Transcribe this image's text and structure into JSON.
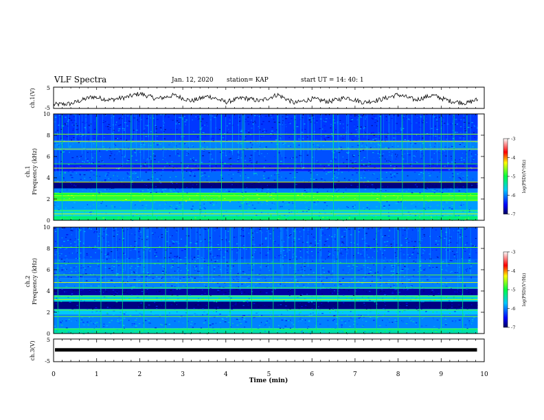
{
  "header": {
    "title": "VLF Spectra",
    "date": "Jan. 12, 2020",
    "station": "station= KAP",
    "start": "start  UT =   14: 40: 1"
  },
  "chart_data": [
    {
      "type": "line",
      "panel": "ch1-waveform",
      "ylabel": "ch.1(V)",
      "ylim": [
        -5,
        5
      ],
      "yticks": [
        "5",
        "-5"
      ],
      "xlim": [
        0,
        10
      ],
      "profile_x": [
        0,
        0.4,
        0.9,
        1.3,
        1.7,
        2.0,
        2.4,
        2.8,
        3.2,
        3.6,
        4.0,
        4.4,
        4.8,
        5.2,
        5.6,
        6.0,
        6.4,
        6.8,
        7.2,
        7.6,
        8.0,
        8.4,
        8.8,
        9.2,
        9.6,
        9.8
      ],
      "profile_y": [
        -3.2,
        -2.8,
        0.5,
        -1.0,
        0.3,
        2.0,
        -0.5,
        1.2,
        -1.5,
        0.8,
        -2.0,
        0.0,
        -1.5,
        1.5,
        -2.5,
        -0.5,
        -1.8,
        0.2,
        -2.2,
        -0.8,
        1.5,
        -1.0,
        1.2,
        -1.5,
        -2.5,
        -1.0
      ]
    },
    {
      "type": "heatmap",
      "panel": "ch1-spectrogram",
      "ylabel": "ch.1\nFrequency (kHz)",
      "ylim": [
        0,
        10
      ],
      "yticks": [
        "0",
        "2",
        "4",
        "6",
        "8",
        "10"
      ],
      "xlim": [
        0,
        10
      ],
      "bands": [
        {
          "f0": 0.0,
          "f1": 0.4,
          "level": -5.2
        },
        {
          "f0": 0.4,
          "f1": 1.0,
          "level": -5.6
        },
        {
          "f0": 1.0,
          "f1": 1.8,
          "level": -5.9
        },
        {
          "f0": 1.8,
          "f1": 2.6,
          "level": -5.0
        },
        {
          "f0": 2.6,
          "f1": 3.0,
          "level": -6.0
        },
        {
          "f0": 3.0,
          "f1": 3.6,
          "level": -6.9
        },
        {
          "f0": 3.6,
          "f1": 4.6,
          "level": -6.1
        },
        {
          "f0": 4.6,
          "f1": 5.4,
          "level": -6.4
        },
        {
          "f0": 5.4,
          "f1": 6.6,
          "level": -6.2
        },
        {
          "f0": 6.6,
          "f1": 7.5,
          "level": -6.0
        },
        {
          "f0": 7.5,
          "f1": 10.0,
          "level": -6.3
        }
      ],
      "lines_khz": [
        0.6,
        0.9,
        1.9,
        2.1,
        2.3,
        2.5,
        3.6,
        4.9,
        5.3,
        6.7,
        7.4,
        8.1
      ],
      "bursts_min": [
        0.2,
        1.0,
        1.8,
        2.3,
        3.0,
        3.4,
        3.9,
        4.4,
        5.2,
        5.6,
        6.0,
        6.5,
        7.1,
        7.6,
        8.1,
        8.6,
        9.0,
        9.3,
        9.6
      ]
    },
    {
      "type": "heatmap",
      "panel": "ch2-spectrogram",
      "ylabel": "ch.2\nFrequency (kHz)",
      "ylim": [
        0,
        10
      ],
      "yticks": [
        "0",
        "2",
        "4",
        "6",
        "8",
        "10"
      ],
      "xlim": [
        0,
        10
      ],
      "bands": [
        {
          "f0": 0.0,
          "f1": 0.5,
          "level": -5.4
        },
        {
          "f0": 0.5,
          "f1": 1.8,
          "level": -6.0
        },
        {
          "f0": 1.8,
          "f1": 2.3,
          "level": -5.7
        },
        {
          "f0": 2.3,
          "f1": 3.0,
          "level": -6.9
        },
        {
          "f0": 3.0,
          "f1": 3.6,
          "level": -5.6
        },
        {
          "f0": 3.6,
          "f1": 4.2,
          "level": -6.8
        },
        {
          "f0": 4.2,
          "f1": 5.2,
          "level": -6.0
        },
        {
          "f0": 5.2,
          "f1": 7.0,
          "level": -6.1
        },
        {
          "f0": 7.0,
          "f1": 10.0,
          "level": -6.2
        }
      ],
      "lines_khz": [
        0.4,
        1.6,
        2.2,
        3.2,
        3.5,
        4.3,
        4.8,
        5.5,
        6.6,
        8.1
      ],
      "bursts_min": [
        0.1,
        0.6,
        1.1,
        1.6,
        2.1,
        2.6,
        3.1,
        3.6,
        4.1,
        4.6,
        5.1,
        5.6,
        6.1,
        6.6,
        7.0,
        7.5,
        8.0,
        8.5,
        9.0,
        9.5
      ]
    },
    {
      "type": "line",
      "panel": "ch3-waveform",
      "ylabel": "ch.3(V)",
      "ylim": [
        -5,
        5
      ],
      "yticks": [
        "5",
        "-5"
      ],
      "xlim": [
        0,
        10
      ],
      "xlabel": "Time (min)",
      "xticks": [
        "0",
        "1",
        "2",
        "3",
        "4",
        "5",
        "6",
        "7",
        "8",
        "9",
        "10"
      ],
      "profile_x": [
        0,
        9.8
      ],
      "profile_y": [
        0.2,
        0.2
      ]
    }
  ],
  "colorbar": {
    "label": "log(PSD)(V²/Hz)",
    "range": [
      -7,
      -3
    ],
    "ticks": [
      "-3",
      "-4",
      "-5",
      "-6",
      "-7"
    ]
  }
}
